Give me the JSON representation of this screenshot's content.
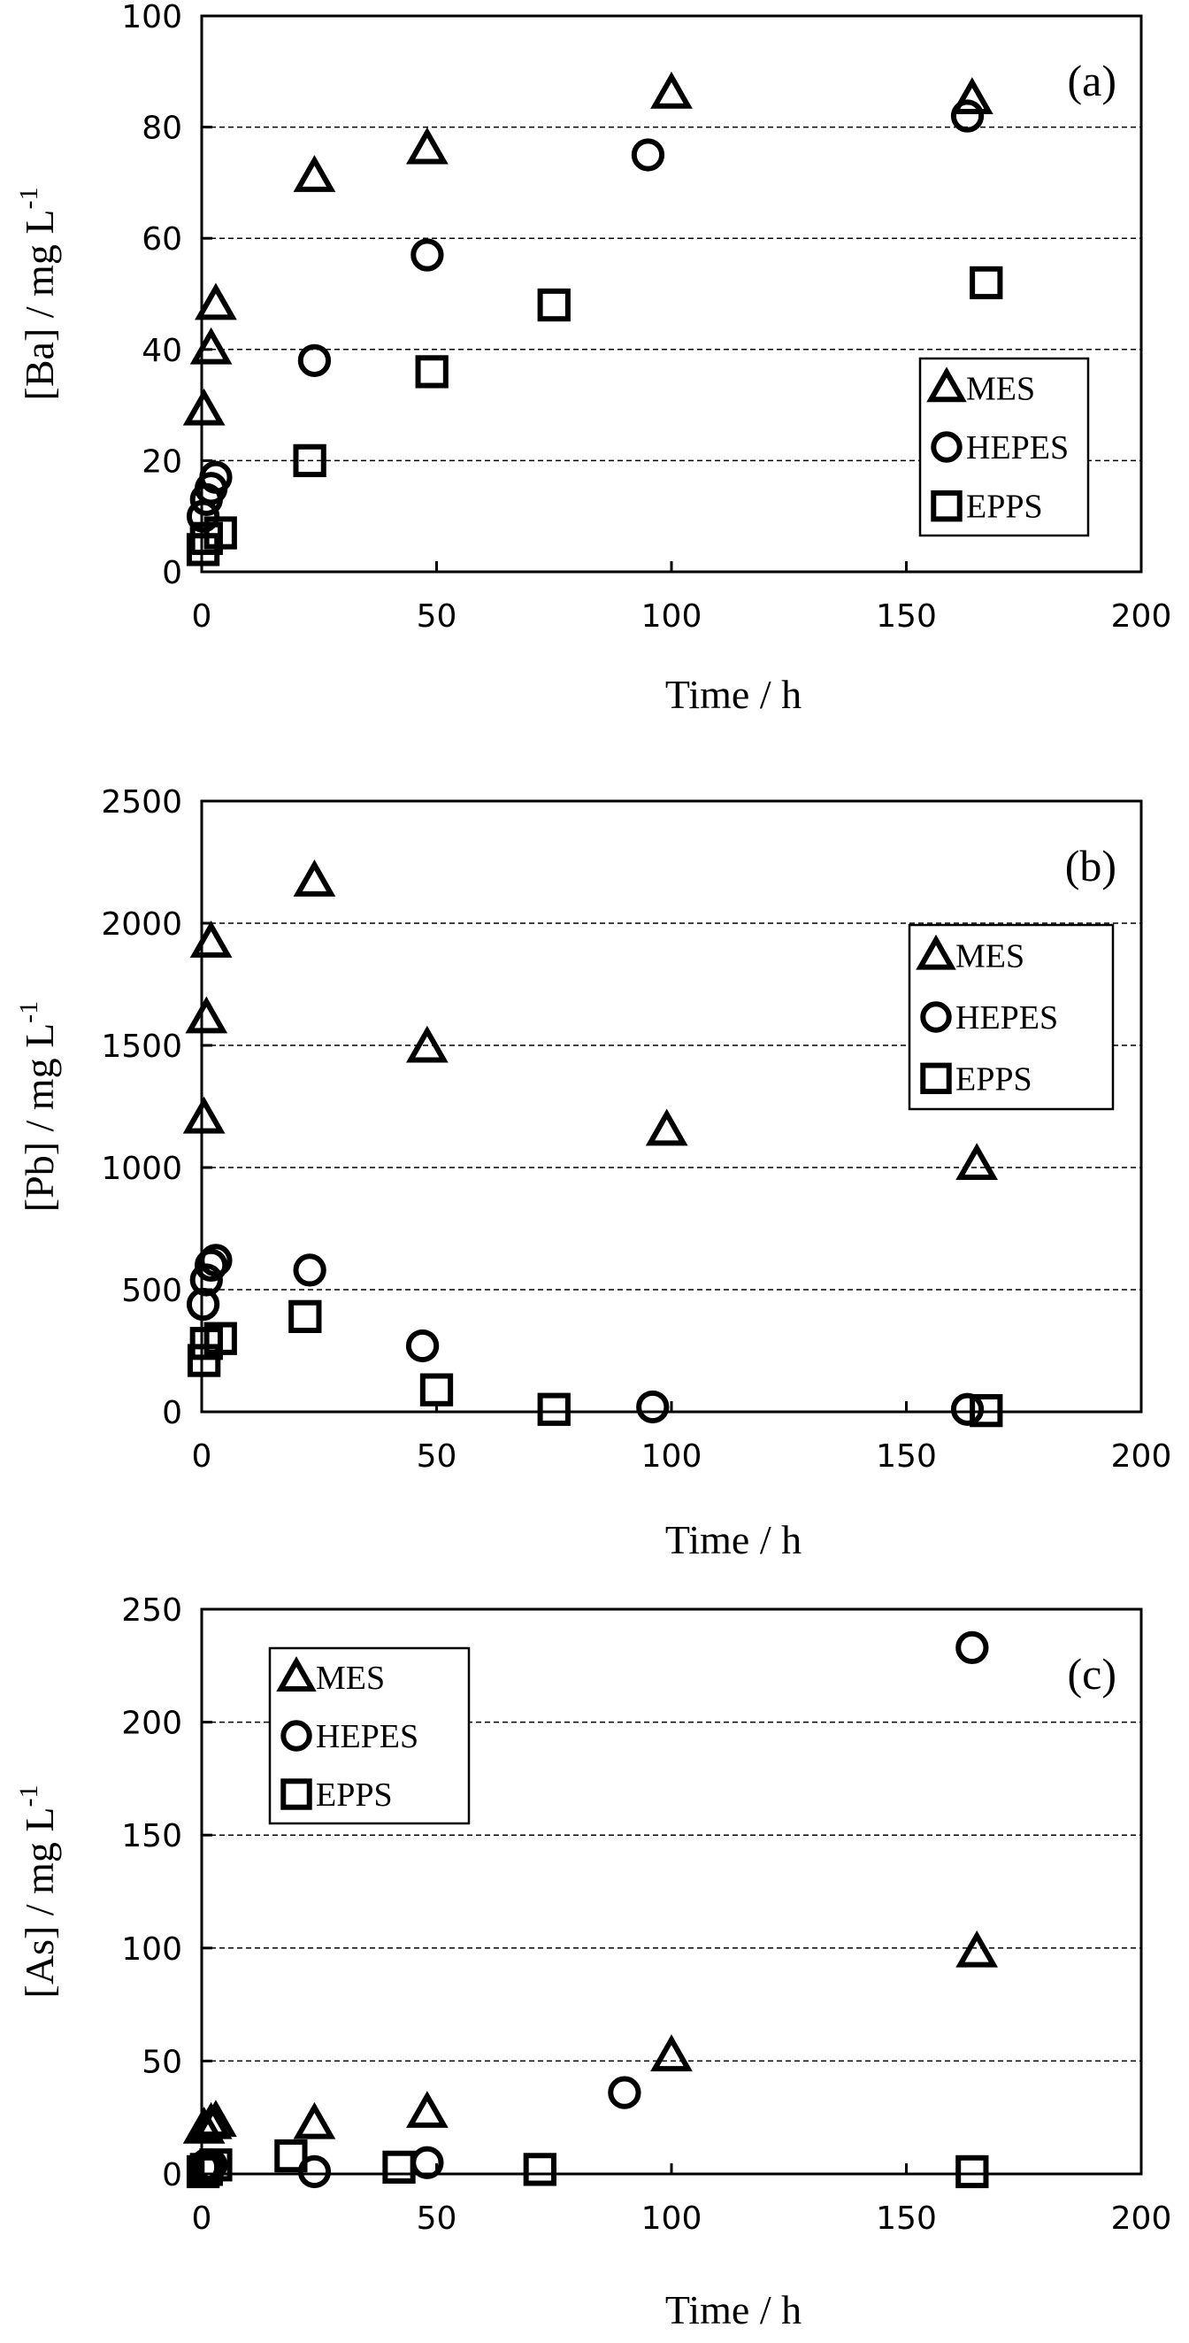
{
  "chart_data": [
    {
      "type": "scatter",
      "panel_label": "(a)",
      "xlabel": "Time / h",
      "ylabel": "[Ba] / mg L",
      "ylabel_sup": "-1",
      "xlim": [
        0,
        200
      ],
      "ylim": [
        0,
        100
      ],
      "xticks": [
        "0",
        "50",
        "100",
        "150",
        "200"
      ],
      "yticks": [
        "0",
        "20",
        "40",
        "60",
        "80",
        "100"
      ],
      "grid": "horizontal-dashed",
      "legend": {
        "position": "right-middle",
        "entries": [
          "MES",
          "HEPES",
          "EPPS"
        ]
      },
      "series": [
        {
          "name": "MES",
          "marker": "triangle",
          "x": [
            0.5,
            2,
            3,
            24,
            48,
            100,
            164
          ],
          "y": [
            29,
            40,
            48,
            71,
            76,
            86,
            85
          ]
        },
        {
          "name": "HEPES",
          "marker": "circle",
          "x": [
            0.3,
            1,
            2,
            3,
            24,
            48,
            95,
            163
          ],
          "y": [
            10,
            13,
            15,
            17,
            38,
            57,
            75,
            82
          ]
        },
        {
          "name": "EPPS",
          "marker": "square",
          "x": [
            0.3,
            1,
            4,
            23,
            49,
            75,
            167
          ],
          "y": [
            4,
            6,
            7,
            20,
            36,
            48,
            52
          ]
        }
      ]
    },
    {
      "type": "scatter",
      "panel_label": "(b)",
      "xlabel": "Time / h",
      "ylabel": "[Pb] / mg L",
      "ylabel_sup": "-1",
      "xlim": [
        0,
        200
      ],
      "ylim": [
        0,
        2500
      ],
      "xticks": [
        "0",
        "50",
        "100",
        "150",
        "200"
      ],
      "yticks": [
        "0",
        "500",
        "1000",
        "1500",
        "2000",
        "2500"
      ],
      "grid": "horizontal-dashed",
      "legend": {
        "position": "top-right",
        "entries": [
          "MES",
          "HEPES",
          "EPPS"
        ]
      },
      "series": [
        {
          "name": "MES",
          "marker": "triangle",
          "x": [
            0.5,
            1,
            2,
            24,
            48,
            99,
            165
          ],
          "y": [
            1200,
            1610,
            1920,
            2170,
            1490,
            1150,
            1010
          ]
        },
        {
          "name": "HEPES",
          "marker": "circle",
          "x": [
            0.3,
            1,
            2,
            3,
            23,
            47,
            96,
            163
          ],
          "y": [
            440,
            540,
            600,
            620,
            580,
            270,
            20,
            10
          ]
        },
        {
          "name": "EPPS",
          "marker": "square",
          "x": [
            0.5,
            1,
            4,
            22,
            50,
            75,
            167
          ],
          "y": [
            210,
            280,
            300,
            390,
            90,
            10,
            5
          ]
        }
      ]
    },
    {
      "type": "scatter",
      "panel_label": "(c)",
      "xlabel": "Time / h",
      "ylabel": "[As] / mg L",
      "ylabel_sup": "-1",
      "xlim": [
        0,
        200
      ],
      "ylim": [
        0,
        250
      ],
      "xticks": [
        "0",
        "50",
        "100",
        "150",
        "200"
      ],
      "yticks": [
        "0",
        "50",
        "100",
        "150",
        "200",
        "250"
      ],
      "grid": "horizontal-dashed",
      "legend": {
        "position": "top-left",
        "entries": [
          "MES",
          "HEPES",
          "EPPS"
        ]
      },
      "series": [
        {
          "name": "MES",
          "marker": "triangle",
          "x": [
            0.5,
            2,
            3,
            24,
            48,
            100,
            165
          ],
          "y": [
            20,
            22,
            23,
            22,
            27,
            52,
            98
          ]
        },
        {
          "name": "HEPES",
          "marker": "circle",
          "x": [
            0.3,
            1,
            2,
            24,
            48,
            90,
            164
          ],
          "y": [
            3,
            4,
            4,
            1,
            5,
            36,
            233
          ]
        },
        {
          "name": "EPPS",
          "marker": "square",
          "x": [
            0.3,
            1,
            3,
            19,
            42,
            72,
            164
          ],
          "y": [
            1,
            2,
            4,
            8,
            3,
            2,
            1
          ]
        }
      ]
    }
  ]
}
